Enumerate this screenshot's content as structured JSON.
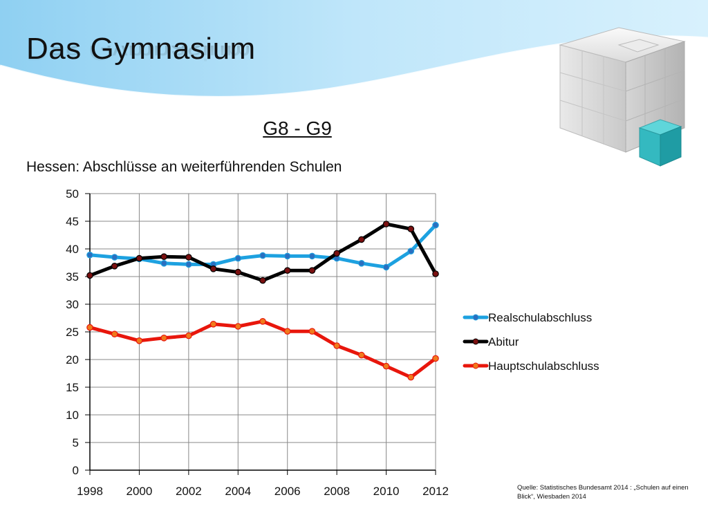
{
  "slide": {
    "title": "Das Gymnasium",
    "subtitle": "G8 - G9",
    "source": "Quelle: Statistisches Bundesamt 2014 : „Schulen auf einen Blick“, Wiesbaden 2014"
  },
  "chart_data": {
    "type": "line",
    "title": "Hessen: Abschlüsse an weiterführenden Schulen",
    "xlabel": "",
    "ylabel": "",
    "x": [
      1998,
      1999,
      2000,
      2001,
      2002,
      2003,
      2004,
      2005,
      2006,
      2007,
      2008,
      2009,
      2010,
      2011,
      2012
    ],
    "x_tick_labels": [
      "1998",
      "2000",
      "2002",
      "2004",
      "2006",
      "2008",
      "2010",
      "2012"
    ],
    "x_ticks": [
      1998,
      2000,
      2002,
      2004,
      2006,
      2008,
      2010,
      2012
    ],
    "xlim": [
      1998,
      2012
    ],
    "ylim": [
      0,
      50
    ],
    "y_ticks": [
      0,
      5,
      10,
      15,
      20,
      25,
      30,
      35,
      40,
      45,
      50
    ],
    "grid": true,
    "legend_position": "right",
    "series": [
      {
        "name": "Realschulabschluss",
        "color": "#1da1e0",
        "marker_color": "#2a6fc0",
        "values": [
          38.9,
          38.5,
          38.2,
          37.4,
          37.2,
          37.2,
          38.3,
          38.8,
          38.7,
          38.7,
          38.3,
          37.4,
          36.7,
          39.6,
          44.3
        ]
      },
      {
        "name": "Abitur",
        "color": "#000000",
        "marker_color": "#7a1010",
        "values": [
          35.2,
          36.9,
          38.3,
          38.6,
          38.5,
          36.4,
          35.8,
          34.3,
          36.1,
          36.1,
          39.2,
          41.7,
          44.5,
          43.6,
          35.5
        ]
      },
      {
        "name": "Hauptschulabschluss",
        "color": "#e8160c",
        "marker_color": "#f07a1c",
        "values": [
          25.8,
          24.6,
          23.4,
          23.9,
          24.3,
          26.4,
          26.0,
          26.9,
          25.1,
          25.1,
          22.5,
          20.8,
          18.8,
          16.8,
          20.2
        ]
      }
    ]
  }
}
